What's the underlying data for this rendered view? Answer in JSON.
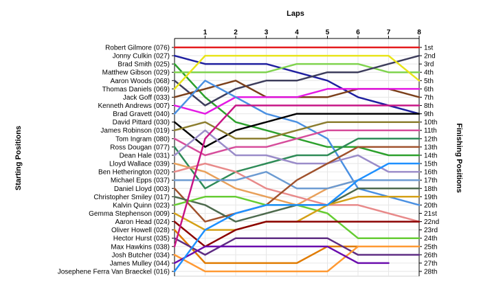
{
  "chart_data": {
    "type": "line",
    "title": "Laps",
    "xlabel": "Laps",
    "ylabel_left": "Starting Positions",
    "ylabel_right": "Finishing Positions",
    "x": [
      0,
      1,
      2,
      3,
      4,
      5,
      6,
      7,
      8
    ],
    "x_tick_labels": [
      "1",
      "2",
      "3",
      "4",
      "5",
      "6",
      "7",
      "8"
    ],
    "ylim": [
      1,
      28
    ],
    "y_inverted": true,
    "grid": true,
    "start_labels": [
      "Robert Gilmore (076)",
      "Jonny Culkin (027)",
      "Brad Smith (025)",
      "Matthew Gibson (029)",
      "Aaron Woods (068)",
      "Thomas Daniels (069)",
      "Jack Goff (033)",
      "Kenneth Andrews (007)",
      "Brad Gravett (040)",
      "David Pittard (030)",
      "James Robinson (019)",
      "Tom Ingram (080)",
      "Ross Dougan (077)",
      "Dean Hale (031)",
      "Lloyd Wallace (039)",
      "Ben Hetherington (020)",
      "Michael Epps (037)",
      "Daniel Lloyd (003)",
      "Christopher Smiley (017)",
      "Kalvin Quinn (023)",
      "Gemma Stephenson (009)",
      "Aaron Head (024)",
      "Oliver Howell (028)",
      "Hector Hurst (035)",
      "Max Hawkins (038)",
      "Josh Butcher (034)",
      "James Mulley (044)",
      "Josephene Ferra Van Braeckel (016)"
    ],
    "finish_labels": [
      "1st",
      "2nd",
      "3rd",
      "4th",
      "5th",
      "6th",
      "7th",
      "8th",
      "9th",
      "10th",
      "11th",
      "12th",
      "13th",
      "14th",
      "15th",
      "16th",
      "17th",
      "18th",
      "19th",
      "20th",
      "21st",
      "22nd",
      "23rd",
      "24th",
      "25th",
      "26th",
      "27th",
      "28th"
    ],
    "series": [
      {
        "color": "#e41a1c",
        "positions": [
          1,
          1,
          1,
          1,
          1,
          1,
          1,
          1,
          1
        ]
      },
      {
        "color": "#1f1f9f",
        "positions": [
          2,
          3,
          3,
          3,
          4,
          5,
          7,
          8,
          9
        ]
      },
      {
        "color": "#2ca02c",
        "positions": [
          3,
          7,
          10,
          11,
          12,
          13,
          13,
          14,
          14
        ]
      },
      {
        "color": "#7fd34e",
        "positions": [
          4,
          4,
          4,
          4,
          3,
          3,
          3,
          4,
          4
        ]
      },
      {
        "color": "#3d3d5c",
        "positions": [
          5,
          8,
          6,
          5,
          5,
          4,
          4,
          3,
          2
        ]
      },
      {
        "color": "#e8e41a",
        "positions": [
          6,
          2,
          2,
          2,
          2,
          2,
          2,
          2,
          5
        ]
      },
      {
        "color": "#7b3f1a",
        "positions": [
          7,
          6,
          5,
          7,
          7,
          7,
          6,
          6,
          7
        ]
      },
      {
        "color": "#e41ae4",
        "positions": [
          8,
          9,
          7,
          7,
          7,
          6,
          6,
          6,
          6
        ]
      },
      {
        "color": "#4a90e2",
        "positions": [
          9,
          5,
          7,
          9,
          10,
          12,
          18,
          19,
          20
        ]
      },
      {
        "color": "#000000",
        "positions": [
          10,
          13,
          11,
          10,
          9,
          9,
          9,
          9,
          9
        ]
      },
      {
        "color": "#8b7d2e",
        "positions": [
          11,
          10,
          12,
          12,
          11,
          10,
          10,
          10,
          10
        ]
      },
      {
        "color": "#d64d9b",
        "positions": [
          12,
          14,
          13,
          13,
          12,
          11,
          11,
          11,
          11
        ]
      },
      {
        "color": "#2e8b57",
        "positions": [
          13,
          18,
          16,
          15,
          14,
          14,
          12,
          12,
          12
        ]
      },
      {
        "color": "#9a8cc9",
        "positions": [
          14,
          11,
          14,
          14,
          15,
          15,
          14,
          16,
          16
        ]
      },
      {
        "color": "#e8a05a",
        "positions": [
          15,
          16,
          18,
          19,
          20,
          18,
          17,
          17,
          17
        ]
      },
      {
        "color": "#e88a8a",
        "positions": [
          16,
          15,
          16,
          18,
          19,
          20,
          20,
          21,
          22
        ]
      },
      {
        "color": "#6c9bd2",
        "positions": [
          17,
          17,
          17,
          16,
          18,
          18,
          17,
          17,
          17
        ]
      },
      {
        "color": "#a0522d",
        "positions": [
          18,
          22,
          21,
          20,
          17,
          15,
          13,
          13,
          13
        ]
      },
      {
        "color": "#4d6a4d",
        "positions": [
          19,
          20,
          22,
          21,
          20,
          20,
          18,
          18,
          18
        ]
      },
      {
        "color": "#66cc33",
        "positions": [
          20,
          19,
          19,
          20,
          20,
          21,
          24,
          24,
          24
        ]
      },
      {
        "color": "#d4a017",
        "positions": [
          21,
          23,
          23,
          22,
          22,
          20,
          19,
          19,
          19
        ]
      },
      {
        "color": "#8b0000",
        "positions": [
          22,
          25,
          23,
          22,
          22,
          22,
          22,
          22,
          22
        ]
      },
      {
        "color": "#e07b00",
        "positions": [
          23,
          27,
          27,
          27,
          27,
          25,
          25,
          25,
          25
        ]
      },
      {
        "color": "#5e2c83",
        "positions": [
          24,
          26,
          24,
          24,
          24,
          24,
          26,
          26,
          26
        ]
      },
      {
        "color": "#c71585",
        "positions": [
          25,
          12,
          8,
          8,
          8,
          8,
          8,
          8,
          8
        ]
      },
      {
        "color": "#ff9933",
        "positions": [
          26,
          28,
          28,
          28,
          28,
          28,
          25,
          25,
          25
        ]
      },
      {
        "color": "#6a0dad",
        "positions": [
          27,
          25,
          25,
          25,
          25,
          25,
          27,
          27,
          null
        ]
      },
      {
        "color": "#1e90ff",
        "positions": [
          28,
          23,
          21,
          20,
          20,
          20,
          17,
          15,
          15
        ]
      }
    ]
  }
}
